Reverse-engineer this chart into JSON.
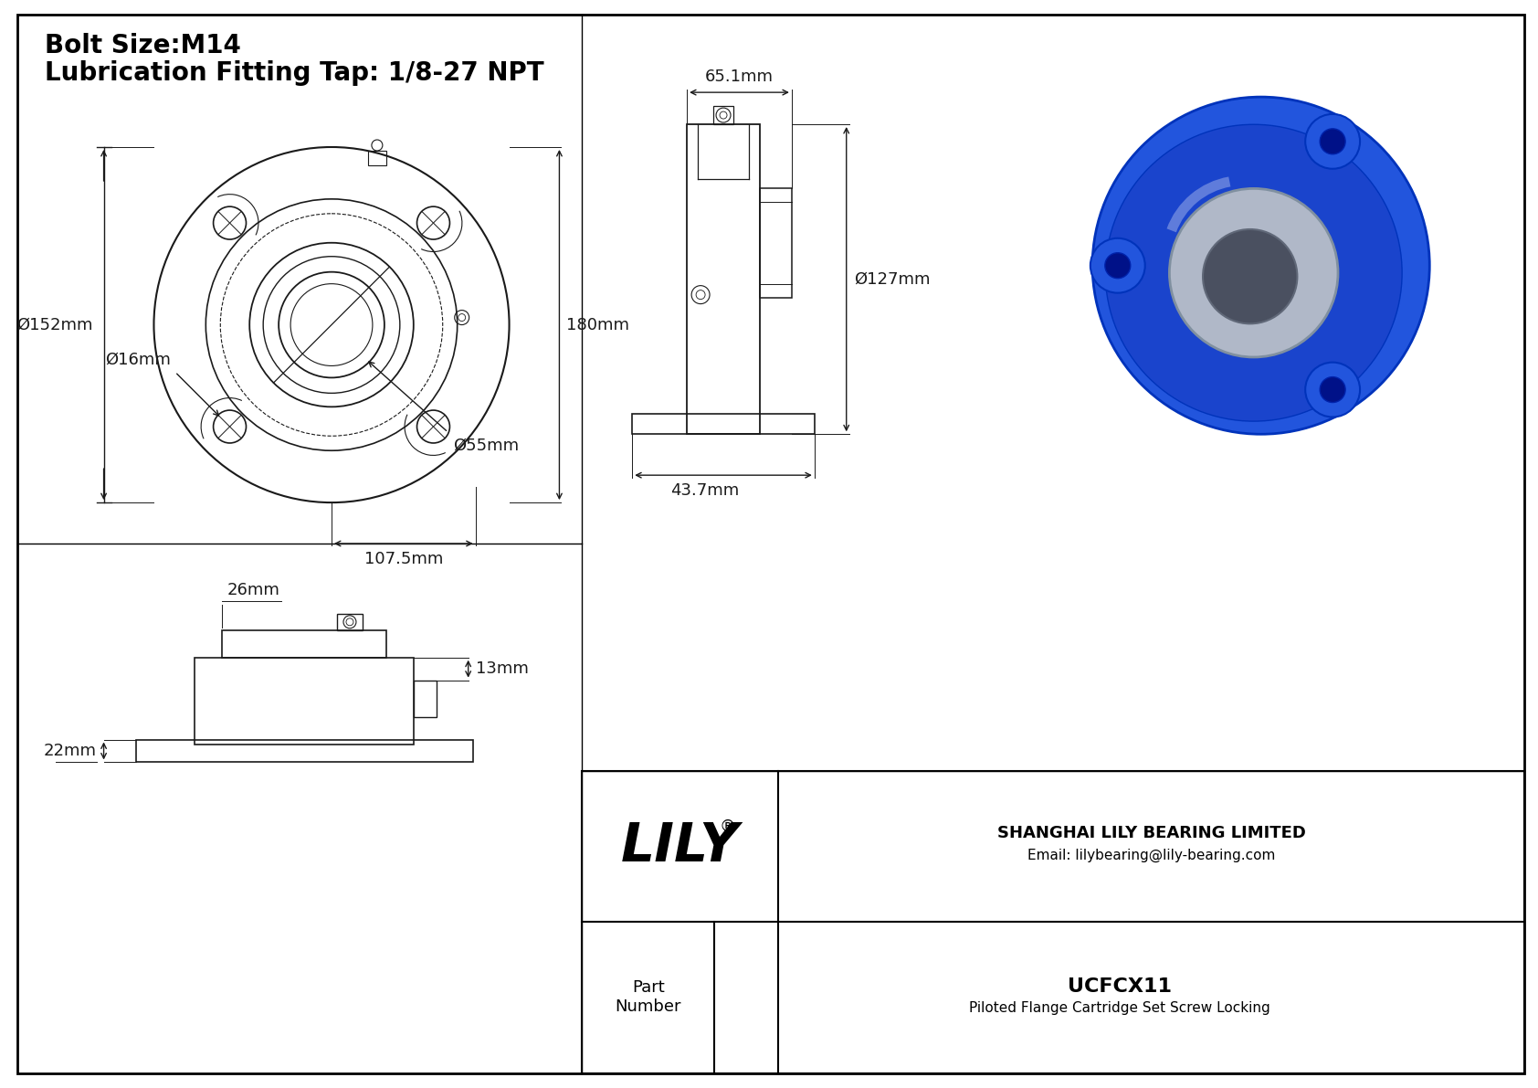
{
  "bg_color": "#ffffff",
  "line_color": "#1a1a1a",
  "dim_color": "#1a1a1a",
  "title_line1": "Bolt Size:M14",
  "title_line2": "Lubrication Fitting Tap: 1/8-27 NPT",
  "title_fontsize": 20,
  "dim_fontsize": 13,
  "dims": {
    "bolt_hole_dia": "Ø16mm",
    "outer_dia": "Ø152mm",
    "height_front": "180mm",
    "bolt_circle": "107.5mm",
    "center_bore": "Ø55mm",
    "side_width": "65.1mm",
    "side_dia": "Ø127mm",
    "side_depth": "43.7mm",
    "bottom_width": "26mm",
    "bottom_right": "13mm",
    "bottom_base": "22mm"
  },
  "title_box": {
    "lily_text": "LILY",
    "lily_reg": "®",
    "company": "SHANGHAI LILY BEARING LIMITED",
    "email": "Email: lilybearing@lily-bearing.com",
    "part_label": "Part\nNumber",
    "part_number": "UCFCX11",
    "part_desc": "Piloted Flange Cartridge Set Screw Locking"
  }
}
